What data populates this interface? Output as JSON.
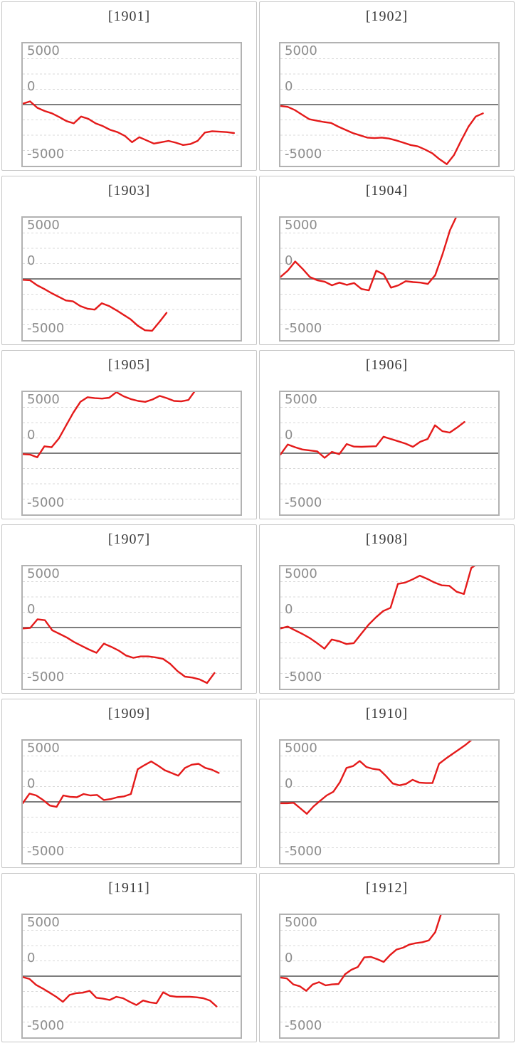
{
  "style": {
    "line_color": "#e41a1a",
    "grid_color": "#d9d9d9",
    "zero_line_color": "#7d7d7d",
    "plot_border_color": "#b2b2b2",
    "card_border_color": "#c6c6c6",
    "title_color": "#3a3a3a",
    "axis_label_color": "#8d8d8d",
    "background": "#ffffff"
  },
  "axis": {
    "tick_labels": {
      "top": "5000",
      "zero": "0",
      "bottom": "-5000"
    }
  },
  "chart_data": {
    "type": "line",
    "layout": "small-multiples grid, 6 rows x 2 columns, shared y-axis per panel",
    "y_axis": {
      "tick_labels": [
        "5000",
        "0",
        "-5000"
      ],
      "range": [
        -6667,
        6667
      ],
      "gridlines": "dashed minor lines at 1/8 intervals (every ~1667 units), solid darker line at 0",
      "grid": true
    },
    "x_axis": {
      "tick_labels": [],
      "note": "no x labels shown; series have different lengths"
    },
    "series": [
      {
        "name": "[1901]",
        "x_end": 0.97,
        "values": [
          100,
          350,
          -350,
          -700,
          -950,
          -1350,
          -1800,
          -2050,
          -1300,
          -1550,
          -2050,
          -2350,
          -2750,
          -3000,
          -3400,
          -4100,
          -3550,
          -3900,
          -4250,
          -4100,
          -3950,
          -4150,
          -4400,
          -4300,
          -3950,
          -3050,
          -2900,
          -2950,
          -3000,
          -3100
        ]
      },
      {
        "name": "[1902]",
        "x_end": 0.93,
        "values": [
          -150,
          -250,
          -600,
          -1100,
          -1600,
          -1750,
          -1900,
          -2000,
          -2400,
          -2750,
          -3100,
          -3350,
          -3600,
          -3650,
          -3600,
          -3700,
          -3900,
          -4150,
          -4400,
          -4550,
          -4900,
          -5300,
          -5950,
          -6500,
          -5500,
          -3900,
          -2400,
          -1300,
          -950
        ]
      },
      {
        "name": "[1903]",
        "x_end": 0.66,
        "values": [
          -100,
          -150,
          -700,
          -1100,
          -1550,
          -1950,
          -2350,
          -2450,
          -2950,
          -3250,
          -3350,
          -2650,
          -2950,
          -3400,
          -3900,
          -4400,
          -5100,
          -5600,
          -5650,
          -4700,
          -3700
        ]
      },
      {
        "name": "[1904]",
        "x_end": 0.88,
        "values": [
          200,
          900,
          1900,
          1100,
          200,
          -150,
          -300,
          -700,
          -400,
          -650,
          -450,
          -1100,
          -1250,
          900,
          500,
          -950,
          -700,
          -250,
          -350,
          -400,
          -550,
          400,
          2700,
          5300,
          7000,
          7000,
          7000
        ]
      },
      {
        "name": "[1905]",
        "x_end": 0.86,
        "values": [
          -100,
          -150,
          -450,
          750,
          650,
          1600,
          3000,
          4400,
          5600,
          6100,
          6000,
          5950,
          6050,
          6650,
          6200,
          5900,
          5700,
          5600,
          5850,
          6250,
          6000,
          5700,
          5650,
          5800,
          6900,
          6900,
          6900
        ]
      },
      {
        "name": "[1906]",
        "x_end": 0.845,
        "values": [
          -150,
          950,
          650,
          400,
          300,
          200,
          -500,
          150,
          -100,
          1000,
          720,
          700,
          730,
          760,
          1800,
          1550,
          1300,
          1050,
          700,
          1250,
          1550,
          3050,
          2400,
          2250,
          2800,
          3400
        ]
      },
      {
        "name": "[1907]",
        "x_end": 0.88,
        "values": [
          -100,
          -50,
          900,
          800,
          -300,
          -700,
          -1100,
          -1600,
          -2000,
          -2400,
          -2750,
          -1750,
          -2100,
          -2500,
          -3050,
          -3300,
          -3150,
          -3150,
          -3250,
          -3400,
          -3950,
          -4750,
          -5350,
          -5450,
          -5650,
          -6050,
          -4950
        ]
      },
      {
        "name": "[1908]",
        "x_end": 0.91,
        "values": [
          -100,
          100,
          -300,
          -700,
          -1150,
          -1700,
          -2300,
          -1300,
          -1500,
          -1800,
          -1700,
          -700,
          300,
          1100,
          1800,
          2150,
          4750,
          4900,
          5250,
          5650,
          5300,
          4900,
          4600,
          4550,
          3900,
          3650,
          6500,
          7000
        ]
      },
      {
        "name": "[1909]",
        "x_end": 0.9,
        "values": [
          -150,
          900,
          700,
          200,
          -400,
          -550,
          700,
          550,
          500,
          850,
          700,
          750,
          200,
          300,
          500,
          600,
          850,
          3550,
          4000,
          4400,
          3950,
          3450,
          3150,
          2850,
          3700,
          4050,
          4150,
          3700,
          3500,
          3150
        ]
      },
      {
        "name": "[1910]",
        "x_end": 0.88,
        "values": [
          -150,
          -150,
          -100,
          -700,
          -1300,
          -500,
          100,
          700,
          1100,
          2150,
          3700,
          3900,
          4450,
          3800,
          3600,
          3500,
          2800,
          2000,
          1800,
          1950,
          2400,
          2100,
          2050,
          2050,
          4150,
          4700,
          5200,
          5700,
          6200,
          6800
        ]
      },
      {
        "name": "[1911]",
        "x_end": 0.89,
        "values": [
          -100,
          -300,
          -950,
          -1350,
          -1800,
          -2250,
          -2800,
          -2050,
          -1850,
          -1800,
          -1600,
          -2350,
          -2450,
          -2600,
          -2250,
          -2400,
          -2800,
          -3150,
          -2650,
          -2850,
          -2950,
          -1750,
          -2150,
          -2250,
          -2250,
          -2250,
          -2300,
          -2400,
          -2650,
          -3300
        ]
      },
      {
        "name": "[1912]",
        "x_end": 0.8,
        "values": [
          -150,
          -250,
          -900,
          -1100,
          -1600,
          -900,
          -650,
          -1000,
          -900,
          -850,
          200,
          700,
          1000,
          2050,
          2100,
          1850,
          1550,
          2300,
          2900,
          3100,
          3450,
          3600,
          3700,
          3900,
          4800,
          7000,
          7000,
          7000
        ]
      }
    ]
  }
}
